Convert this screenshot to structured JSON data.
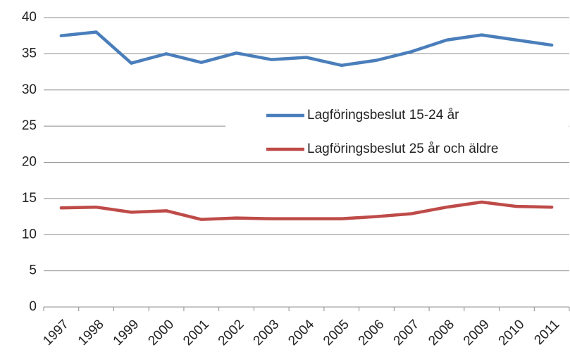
{
  "chart_data": {
    "type": "line",
    "categories": [
      "1997",
      "1998",
      "1999",
      "2000",
      "2001",
      "2002",
      "2003",
      "2004",
      "2005",
      "2006",
      "2007",
      "2008",
      "2009",
      "2010",
      "2011"
    ],
    "series": [
      {
        "name": "Lagföringsbeslut 15-24 år",
        "color": "#4a7ebb",
        "values": [
          37.5,
          38.0,
          33.7,
          35.0,
          33.8,
          35.1,
          34.2,
          34.5,
          33.4,
          34.1,
          35.3,
          36.9,
          37.6,
          36.9,
          36.2
        ]
      },
      {
        "name": "Lagföringsbeslut 25 år och äldre",
        "color": "#be4b48",
        "values": [
          13.7,
          13.8,
          13.1,
          13.3,
          12.1,
          12.3,
          12.2,
          12.2,
          12.2,
          12.5,
          12.9,
          13.8,
          14.5,
          13.9,
          13.8
        ]
      }
    ],
    "ylim": [
      0,
      40
    ],
    "yticks": [
      0,
      5,
      10,
      15,
      20,
      25,
      30,
      35,
      40
    ],
    "grid": true,
    "legend": "center-right"
  }
}
